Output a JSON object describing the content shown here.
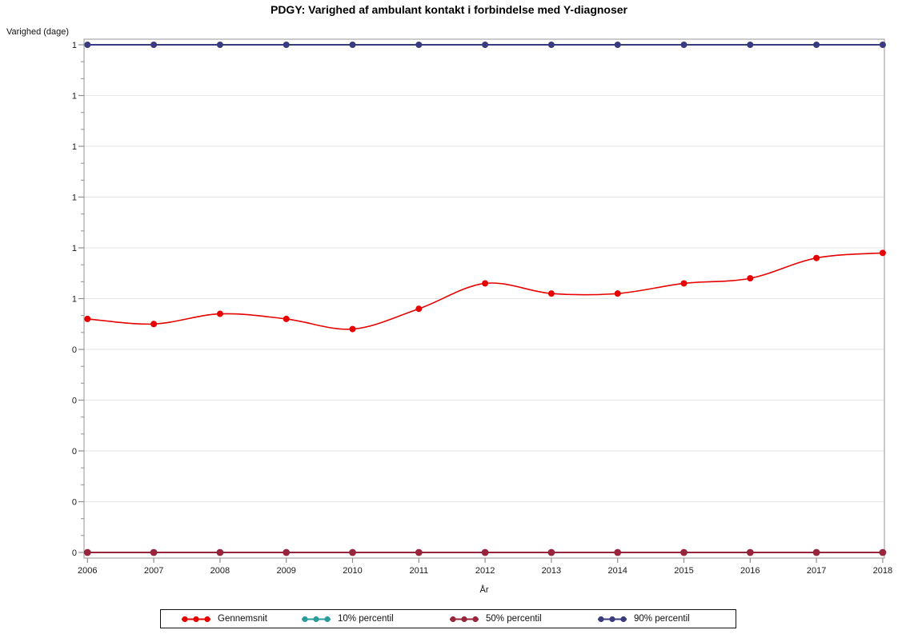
{
  "chart_data": {
    "type": "line",
    "title": "PDGY: Varighed af ambulant kontakt i forbindelse med Y-diagnoser",
    "xlabel": "År",
    "ylabel": "Varighed (dage)",
    "x": [
      2006,
      2007,
      2008,
      2009,
      2010,
      2011,
      2012,
      2013,
      2014,
      2015,
      2016,
      2017,
      2018
    ],
    "x_tick_labels": [
      "2006",
      "2007",
      "2008",
      "2009",
      "2010",
      "2011",
      "2012",
      "2013",
      "2014",
      "2015",
      "2016",
      "2017",
      "2018"
    ],
    "ylim": [
      0,
      1
    ],
    "ytick_step": 0.1,
    "ytick_labels_top_to_bottom": [
      "1",
      "1",
      "1",
      "1",
      "1",
      "1",
      "0",
      "0",
      "0",
      "0",
      "0"
    ],
    "grid": "horizontal",
    "legend_position": "bottom",
    "series": [
      {
        "name": "Gennemsnit",
        "color": "#e60000",
        "marker": "circle",
        "interpolation": "spline",
        "values": [
          0.46,
          0.45,
          0.47,
          0.46,
          0.44,
          0.48,
          0.53,
          0.51,
          0.51,
          0.53,
          0.54,
          0.58,
          0.59
        ]
      },
      {
        "name": "10% percentil",
        "color": "#2a9c9c",
        "marker": "circle",
        "interpolation": "spline",
        "values": [
          0,
          0,
          0,
          0,
          0,
          0,
          0,
          0,
          0,
          0,
          0,
          0,
          0
        ]
      },
      {
        "name": "50% percentil",
        "color": "#98253b",
        "marker": "circle",
        "interpolation": "spline",
        "values": [
          0,
          0,
          0,
          0,
          0,
          0,
          0,
          0,
          0,
          0,
          0,
          0,
          0
        ]
      },
      {
        "name": "90% percentil",
        "color": "#3a3a7e",
        "marker": "circle",
        "interpolation": "spline",
        "values": [
          1,
          1,
          1,
          1,
          1,
          1,
          1,
          1,
          1,
          1,
          1,
          1,
          1
        ]
      }
    ]
  },
  "colors": {
    "frame": "#a6a6a6",
    "gridline": "#e6e6e6",
    "tick": "#8c9091",
    "tick_label": "#1a1a1a",
    "legend_border": "#111111"
  }
}
